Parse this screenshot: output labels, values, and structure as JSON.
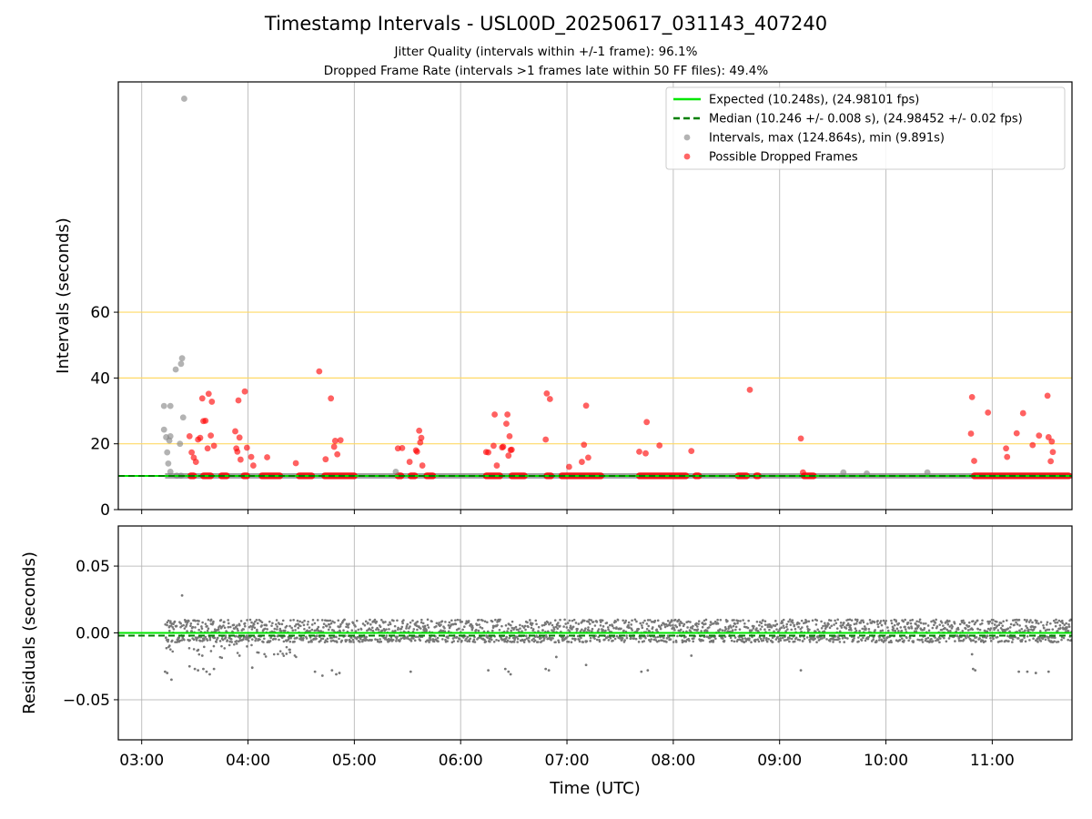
{
  "chart_data": {
    "type": "scatter",
    "title": "Timestamp Intervals - USL00D_20250617_031143_407240",
    "subtitle_lines": [
      "Jitter Quality (intervals within +/-1 frame): 96.1%",
      "Dropped Frame Rate (intervals >1 frames late within 50 FF files): 49.4%"
    ],
    "x_axis": {
      "label": "Time (UTC)",
      "range_hours": [
        2.78,
        11.75
      ],
      "ticks": [
        {
          "value": 3,
          "label": "03:00"
        },
        {
          "value": 4,
          "label": "04:00"
        },
        {
          "value": 5,
          "label": "05:00"
        },
        {
          "value": 6,
          "label": "06:00"
        },
        {
          "value": 7,
          "label": "07:00"
        },
        {
          "value": 8,
          "label": "08:00"
        },
        {
          "value": 9,
          "label": "09:00"
        },
        {
          "value": 10,
          "label": "10:00"
        },
        {
          "value": 11,
          "label": "11:00"
        }
      ]
    },
    "top_panel": {
      "ylabel": "Intervals (seconds)",
      "ylim": [
        0,
        130
      ],
      "yticks": [
        {
          "value": 0,
          "label": "0"
        },
        {
          "value": 20,
          "label": "20"
        },
        {
          "value": 40,
          "label": "40"
        },
        {
          "value": 60,
          "label": "60"
        }
      ],
      "reference_lines": [
        20,
        40,
        60
      ],
      "reference_line_color": "#ffd966",
      "grid": true,
      "legend_position": "top-right",
      "legend": [
        {
          "label": "Expected (10.248s), (24.98101 fps)",
          "style": "line",
          "color": "#00e600"
        },
        {
          "label": "Median (10.246 +/- 0.008 s), (24.98452 +/- 0.02 fps)",
          "style": "dashed",
          "color": "#008000"
        },
        {
          "label": "Intervals, max (124.864s), min (9.891s)",
          "style": "dot",
          "color": "#808080"
        },
        {
          "label": "Possible Dropped Frames",
          "style": "dot",
          "color": "#ff0000"
        }
      ],
      "expected_value": 10.248,
      "median_value": 10.246,
      "intervals_gray": [
        [
          3.21,
          31.5
        ],
        [
          3.27,
          31.5
        ],
        [
          3.21,
          24.3
        ],
        [
          3.23,
          22.0
        ],
        [
          3.27,
          22.3
        ],
        [
          3.26,
          21.0
        ],
        [
          3.24,
          17.4
        ],
        [
          3.25,
          14.0
        ],
        [
          3.27,
          11.5
        ],
        [
          3.32,
          42.6
        ],
        [
          3.37,
          44.3
        ],
        [
          3.38,
          46.0
        ],
        [
          3.4,
          124.9
        ],
        [
          3.39,
          28.0
        ],
        [
          3.36,
          20.0
        ],
        [
          3.33,
          10.3
        ],
        [
          3.37,
          10.3
        ],
        [
          5.39,
          11.5
        ],
        [
          9.6,
          11.3
        ],
        [
          9.82,
          11.0
        ],
        [
          10.39,
          11.3
        ]
      ],
      "dropped_frames": [
        [
          3.45,
          22.3
        ],
        [
          3.47,
          17.4
        ],
        [
          3.49,
          15.8
        ],
        [
          3.51,
          14.5
        ],
        [
          3.53,
          21.3
        ],
        [
          3.55,
          21.8
        ],
        [
          3.57,
          33.8
        ],
        [
          3.58,
          26.9
        ],
        [
          3.6,
          27.0
        ],
        [
          3.62,
          18.6
        ],
        [
          3.63,
          35.2
        ],
        [
          3.65,
          22.5
        ],
        [
          3.66,
          32.8
        ],
        [
          3.68,
          19.4
        ],
        [
          3.88,
          23.8
        ],
        [
          3.89,
          18.6
        ],
        [
          3.9,
          17.6
        ],
        [
          3.91,
          33.2
        ],
        [
          3.92,
          21.9
        ],
        [
          3.93,
          15.2
        ],
        [
          3.97,
          35.9
        ],
        [
          3.99,
          18.8
        ],
        [
          4.03,
          16.0
        ],
        [
          4.05,
          13.4
        ],
        [
          4.18,
          15.9
        ],
        [
          4.45,
          14.1
        ],
        [
          4.67,
          42.0
        ],
        [
          4.73,
          15.3
        ],
        [
          4.78,
          33.8
        ],
        [
          4.81,
          19.1
        ],
        [
          4.82,
          20.9
        ],
        [
          4.84,
          16.8
        ],
        [
          4.87,
          21.1
        ],
        [
          5.41,
          18.6
        ],
        [
          5.45,
          18.7
        ],
        [
          5.52,
          14.5
        ],
        [
          5.58,
          18.0
        ],
        [
          5.59,
          17.6
        ],
        [
          5.61,
          24.0
        ],
        [
          5.62,
          20.4
        ],
        [
          5.63,
          21.8
        ],
        [
          5.64,
          13.4
        ],
        [
          6.24,
          17.5
        ],
        [
          6.26,
          17.4
        ],
        [
          6.31,
          19.4
        ],
        [
          6.32,
          28.9
        ],
        [
          6.34,
          13.4
        ],
        [
          6.39,
          18.9
        ],
        [
          6.4,
          19.1
        ],
        [
          6.43,
          26.1
        ],
        [
          6.44,
          28.9
        ],
        [
          6.45,
          16.4
        ],
        [
          6.46,
          22.3
        ],
        [
          6.47,
          18.1
        ],
        [
          6.48,
          18.2
        ],
        [
          6.8,
          21.3
        ],
        [
          6.81,
          35.3
        ],
        [
          6.84,
          33.6
        ],
        [
          7.02,
          13.0
        ],
        [
          7.14,
          14.5
        ],
        [
          7.16,
          19.7
        ],
        [
          7.18,
          31.6
        ],
        [
          7.2,
          15.8
        ],
        [
          7.68,
          17.6
        ],
        [
          7.74,
          17.1
        ],
        [
          7.75,
          26.6
        ],
        [
          7.87,
          19.5
        ],
        [
          8.17,
          17.8
        ],
        [
          8.72,
          36.4
        ],
        [
          9.2,
          21.6
        ],
        [
          9.22,
          11.3
        ],
        [
          10.8,
          23.1
        ],
        [
          10.81,
          34.2
        ],
        [
          10.83,
          14.8
        ],
        [
          10.96,
          29.5
        ],
        [
          11.13,
          18.6
        ],
        [
          11.14,
          16.0
        ],
        [
          11.23,
          23.2
        ],
        [
          11.29,
          29.3
        ],
        [
          11.38,
          19.6
        ],
        [
          11.44,
          22.5
        ],
        [
          11.52,
          34.6
        ],
        [
          11.53,
          22.0
        ],
        [
          11.55,
          14.7
        ],
        [
          11.56,
          20.7
        ],
        [
          11.57,
          17.5
        ]
      ],
      "dropped_clusters": [
        [
          3.43,
          3.52
        ],
        [
          3.55,
          3.68
        ],
        [
          3.72,
          3.83
        ],
        [
          3.93,
          4.02
        ],
        [
          4.1,
          4.33
        ],
        [
          4.45,
          4.63
        ],
        [
          4.69,
          5.03
        ],
        [
          5.38,
          5.47
        ],
        [
          5.5,
          5.6
        ],
        [
          5.65,
          5.77
        ],
        [
          6.21,
          6.4
        ],
        [
          6.45,
          6.63
        ],
        [
          6.78,
          6.88
        ],
        [
          6.92,
          7.35
        ],
        [
          7.65,
          8.15
        ],
        [
          8.18,
          8.27
        ],
        [
          8.58,
          8.72
        ],
        [
          8.75,
          8.83
        ],
        [
          9.2,
          9.35
        ],
        [
          10.8,
          11.75
        ]
      ]
    },
    "bottom_panel": {
      "ylabel": "Residuals (seconds)",
      "ylim": [
        -0.08,
        0.08
      ],
      "yticks": [
        {
          "value": 0.05,
          "label": "0.05"
        },
        {
          "value": 0.0,
          "label": "0.00"
        },
        {
          "value": -0.05,
          "label": "−0.05"
        }
      ],
      "grid": true,
      "band_upper": [
        0.0,
        0.01
      ],
      "band_lower": [
        -0.007,
        -0.002
      ],
      "outliers": [
        [
          3.22,
          -0.029
        ],
        [
          3.24,
          -0.03
        ],
        [
          3.28,
          -0.035
        ],
        [
          3.38,
          0.028
        ],
        [
          3.45,
          -0.025
        ],
        [
          3.5,
          -0.027
        ],
        [
          3.53,
          -0.028
        ],
        [
          3.57,
          -0.017
        ],
        [
          3.58,
          -0.027
        ],
        [
          3.61,
          -0.029
        ],
        [
          3.64,
          -0.031
        ],
        [
          3.68,
          -0.027
        ],
        [
          3.92,
          -0.017
        ],
        [
          4.04,
          -0.026
        ],
        [
          4.63,
          -0.029
        ],
        [
          4.7,
          -0.032
        ],
        [
          4.79,
          -0.028
        ],
        [
          4.83,
          -0.031
        ],
        [
          4.86,
          -0.03
        ],
        [
          5.53,
          -0.029
        ],
        [
          6.26,
          -0.028
        ],
        [
          6.42,
          -0.027
        ],
        [
          6.45,
          -0.029
        ],
        [
          6.47,
          -0.031
        ],
        [
          6.8,
          -0.027
        ],
        [
          6.83,
          -0.028
        ],
        [
          6.9,
          -0.018
        ],
        [
          7.18,
          -0.024
        ],
        [
          7.7,
          -0.029
        ],
        [
          7.76,
          -0.028
        ],
        [
          8.17,
          -0.017
        ],
        [
          9.2,
          -0.028
        ],
        [
          10.81,
          -0.016
        ],
        [
          10.82,
          -0.027
        ],
        [
          10.84,
          -0.028
        ],
        [
          11.25,
          -0.029
        ],
        [
          11.33,
          -0.029
        ],
        [
          11.41,
          -0.03
        ],
        [
          11.53,
          -0.029
        ]
      ]
    },
    "colors": {
      "gray_points": "#808080",
      "red_points": "#ff0000",
      "expected_line": "#00e600",
      "median_line": "#008000",
      "residual_points": "#777777",
      "grid": "#b0b0b0"
    }
  }
}
